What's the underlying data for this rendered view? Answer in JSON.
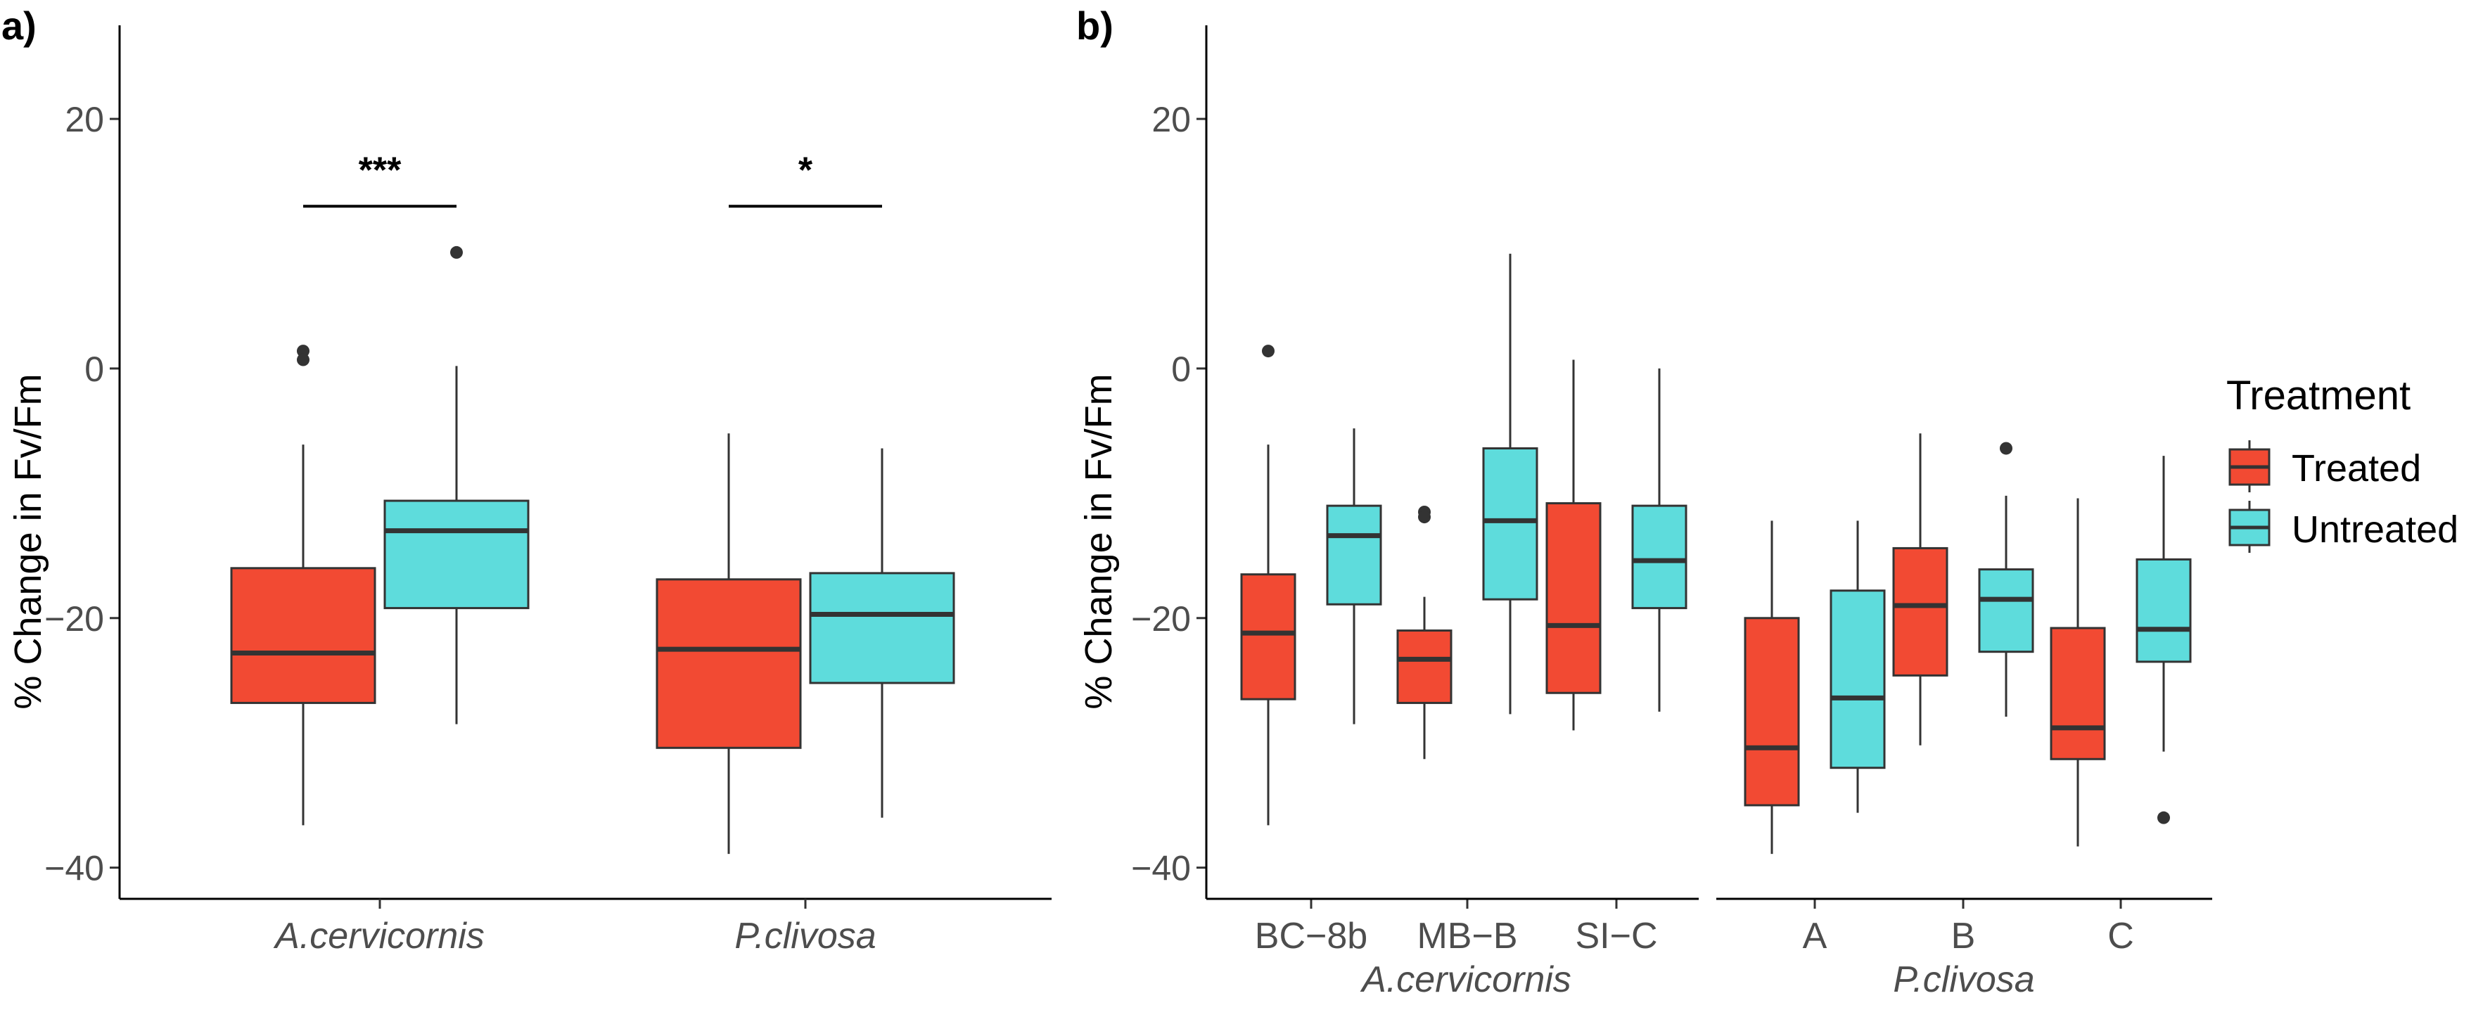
{
  "colors": {
    "Treated": "#F24A33",
    "Untreated": "#5EDCDC",
    "box_stroke": "#333333",
    "axis": "#000000",
    "tick_text": "#4D4D4D"
  },
  "legend": {
    "title": "Treatment",
    "items": [
      "Treated",
      "Untreated"
    ]
  },
  "chart_data": [
    {
      "type": "box",
      "panel_label": "a)",
      "ylabel": "% Change in Fv/Fm",
      "xlabel": "",
      "ylim": [
        -42.5,
        27.5
      ],
      "yticks": [
        -40,
        -20,
        0,
        20
      ],
      "categories": [
        "A.cervicornis",
        "P.clivosa"
      ],
      "series": [
        {
          "name": "Treated",
          "boxes": [
            {
              "category": "A.cervicornis",
              "min": -36.6,
              "q1": -26.8,
              "median": -22.8,
              "q3": -16.0,
              "max": -6.1,
              "outliers": [
                1.4,
                0.7
              ]
            },
            {
              "category": "P.clivosa",
              "min": -38.9,
              "q1": -30.4,
              "median": -22.5,
              "q3": -16.9,
              "max": -5.2,
              "outliers": []
            }
          ]
        },
        {
          "name": "Untreated",
          "boxes": [
            {
              "category": "A.cervicornis",
              "min": -28.5,
              "q1": -19.2,
              "median": -13.0,
              "q3": -10.6,
              "max": 0.2,
              "outliers": [
                9.3
              ]
            },
            {
              "category": "P.clivosa",
              "min": -36.0,
              "q1": -25.2,
              "median": -19.7,
              "q3": -16.4,
              "max": -6.4,
              "outliers": []
            }
          ]
        }
      ],
      "significance": [
        {
          "category": "A.cervicornis",
          "label": "***",
          "y": 13.0
        },
        {
          "category": "P.clivosa",
          "label": "*",
          "y": 13.0
        }
      ]
    },
    {
      "type": "box",
      "panel_label": "b)",
      "ylabel": "% Change in Fv/Fm",
      "ylim": [
        -42.5,
        27.5
      ],
      "yticks": [
        -40,
        -20,
        0,
        20
      ],
      "groups": [
        {
          "name": "A.cervicornis",
          "categories": [
            "BC−8b",
            "MB−B",
            "SI−C"
          ],
          "series": [
            {
              "name": "Treated",
              "boxes": [
                {
                  "category": "BC−8b",
                  "min": -36.6,
                  "q1": -26.5,
                  "median": -21.2,
                  "q3": -16.5,
                  "max": -6.1,
                  "outliers": [
                    1.4
                  ]
                },
                {
                  "category": "MB−B",
                  "min": -31.3,
                  "q1": -26.8,
                  "median": -23.3,
                  "q3": -21.0,
                  "max": -18.3,
                  "outliers": [
                    -11.5,
                    -11.9
                  ]
                },
                {
                  "category": "SI−C",
                  "min": -29.0,
                  "q1": -26.0,
                  "median": -20.6,
                  "q3": -10.8,
                  "max": 0.7,
                  "outliers": []
                }
              ]
            },
            {
              "name": "Untreated",
              "boxes": [
                {
                  "category": "BC−8b",
                  "min": -28.5,
                  "q1": -18.9,
                  "median": -13.4,
                  "q3": -11.0,
                  "max": -4.8,
                  "outliers": []
                },
                {
                  "category": "MB−B",
                  "min": -27.7,
                  "q1": -18.5,
                  "median": -12.2,
                  "q3": -6.4,
                  "max": 9.2,
                  "outliers": []
                },
                {
                  "category": "SI−C",
                  "min": -27.5,
                  "q1": -19.2,
                  "median": -15.4,
                  "q3": -11.0,
                  "max": 0.0,
                  "outliers": []
                }
              ]
            }
          ]
        },
        {
          "name": "P.clivosa",
          "categories": [
            "A",
            "B",
            "C"
          ],
          "series": [
            {
              "name": "Treated",
              "boxes": [
                {
                  "category": "A",
                  "min": -38.9,
                  "q1": -35.0,
                  "median": -30.4,
                  "q3": -20.0,
                  "max": -12.2,
                  "outliers": []
                },
                {
                  "category": "B",
                  "min": -30.2,
                  "q1": -24.6,
                  "median": -19.0,
                  "q3": -14.4,
                  "max": -5.2,
                  "outliers": []
                },
                {
                  "category": "C",
                  "min": -38.3,
                  "q1": -31.3,
                  "median": -28.8,
                  "q3": -20.8,
                  "max": -10.4,
                  "outliers": []
                }
              ]
            },
            {
              "name": "Untreated",
              "boxes": [
                {
                  "category": "A",
                  "min": -35.6,
                  "q1": -32.0,
                  "median": -26.4,
                  "q3": -17.8,
                  "max": -12.2,
                  "outliers": []
                },
                {
                  "category": "B",
                  "min": -27.9,
                  "q1": -22.7,
                  "median": -18.5,
                  "q3": -16.1,
                  "max": -10.2,
                  "outliers": [
                    -6.4
                  ]
                },
                {
                  "category": "C",
                  "min": -30.7,
                  "q1": -23.5,
                  "median": -20.9,
                  "q3": -15.3,
                  "max": -7.0,
                  "outliers": [
                    -36.0
                  ]
                }
              ]
            }
          ]
        }
      ]
    }
  ]
}
